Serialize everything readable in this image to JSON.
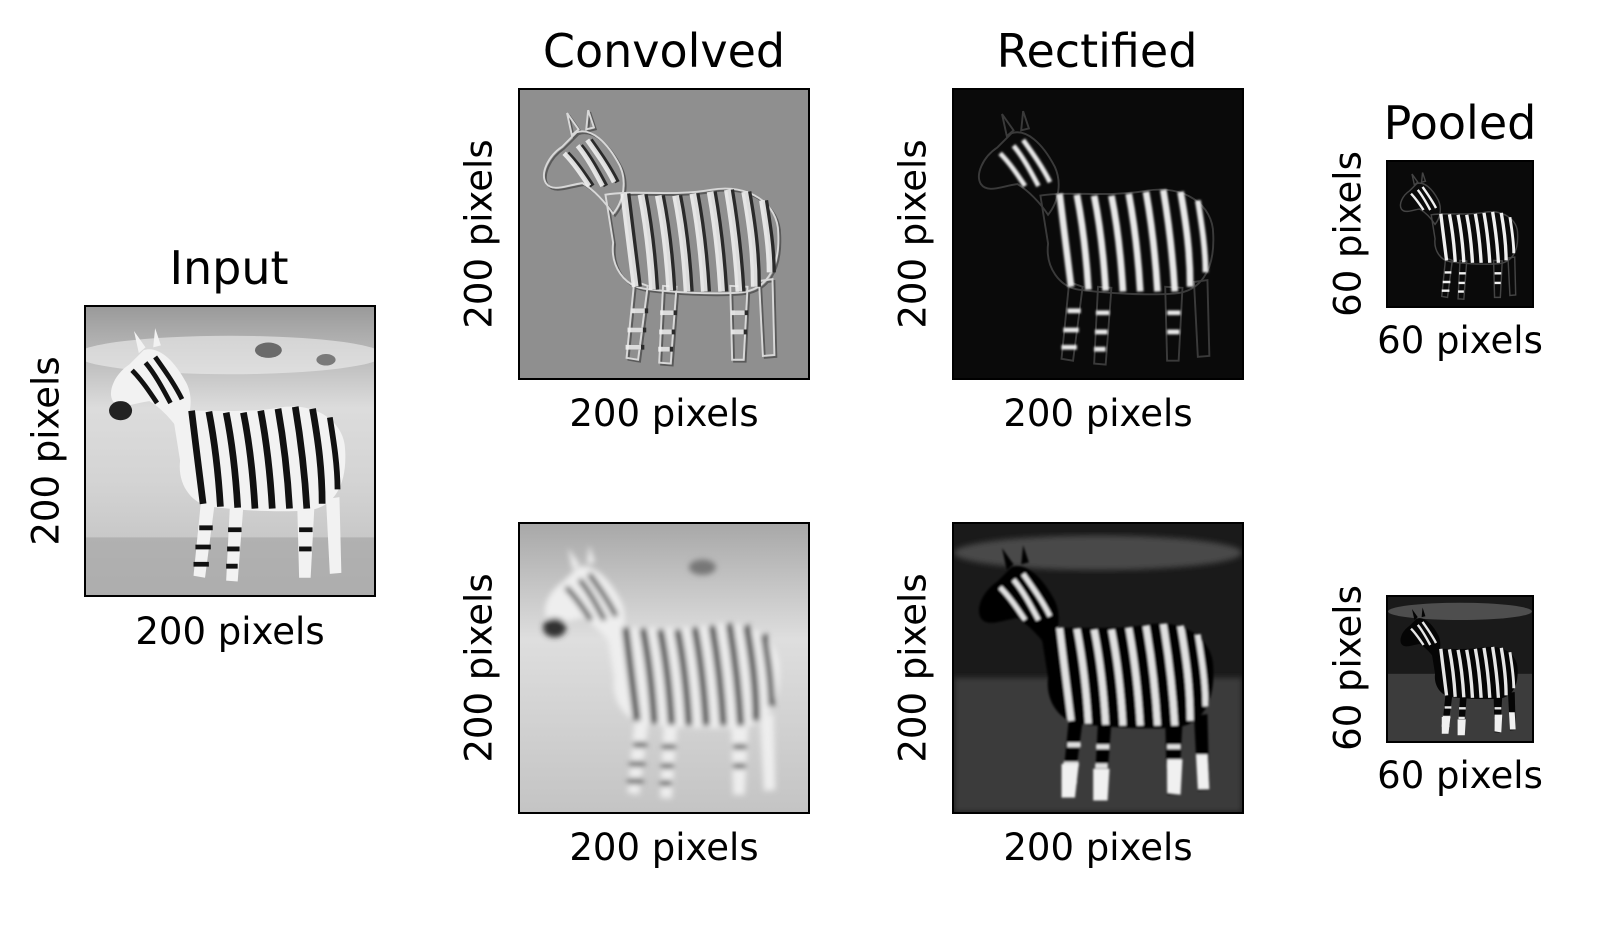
{
  "input": {
    "title": "Input",
    "xlabel": "200 pixels",
    "ylabel": "200 pixels"
  },
  "columns": {
    "convolved_title": "Convolved",
    "rectified_title": "Rectified",
    "pooled_title": "Pooled"
  },
  "rows": [
    {
      "convolved": {
        "xlabel": "200 pixels",
        "ylabel": "200 pixels"
      },
      "rectified": {
        "xlabel": "200 pixels",
        "ylabel": "200 pixels"
      },
      "pooled": {
        "xlabel": "60 pixels",
        "ylabel": "60 pixels"
      }
    },
    {
      "convolved": {
        "xlabel": "200 pixels",
        "ylabel": "200 pixels"
      },
      "rectified": {
        "xlabel": "200 pixels",
        "ylabel": "200 pixels"
      },
      "pooled": {
        "xlabel": "60 pixels",
        "ylabel": "60 pixels"
      }
    }
  ],
  "image_content": "zebra-photo-grayscale",
  "colors": {
    "frame": "#000000",
    "emboss_background": "#8f8f8f",
    "rectified_background": "#0a0a0a",
    "blur_background": "#cfcfcf"
  }
}
